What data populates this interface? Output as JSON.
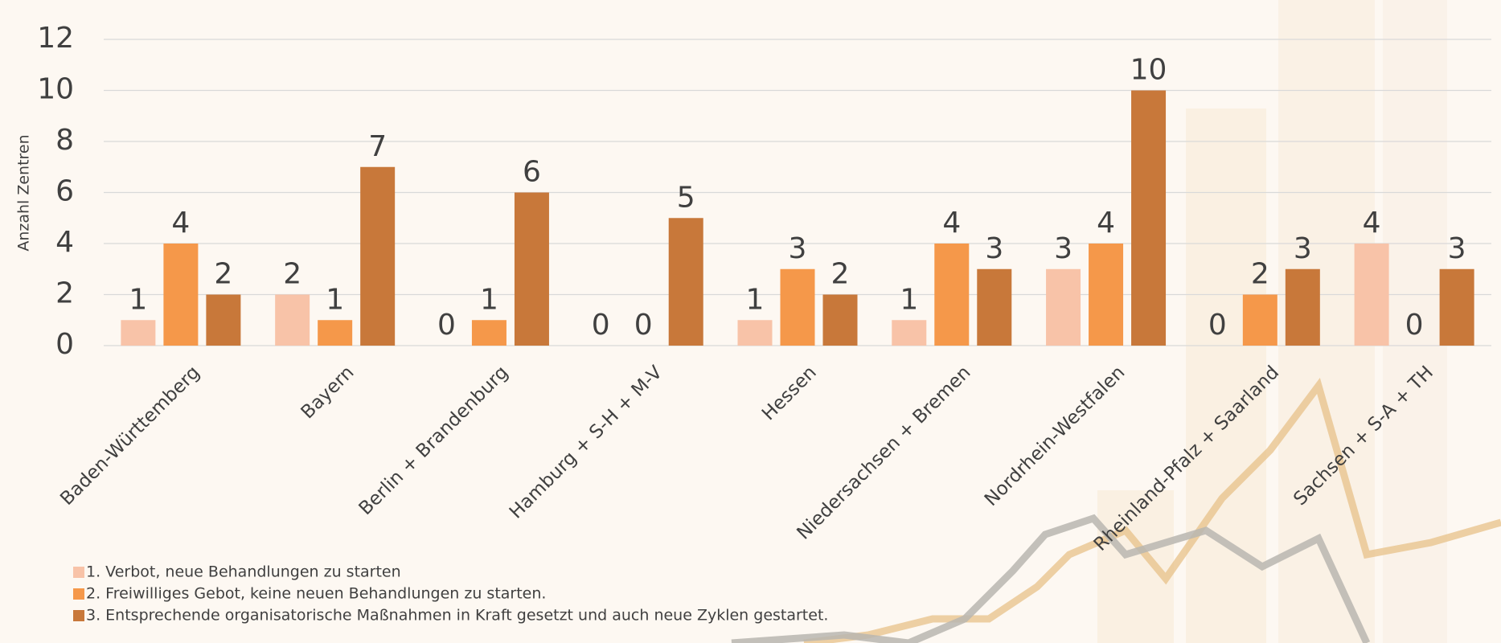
{
  "chart_data": {
    "type": "bar",
    "y_label": "Anzahl Zentren",
    "categories": [
      "Baden-Württemberg",
      "Bayern",
      "Berlin + Brandenburg",
      "Hamburg + S-H + M-V",
      "Hessen",
      "Niedersachsen + Bremen",
      "Nordrhein-Westfalen",
      "Rheinland-Pfalz + Saarland",
      "Sachsen + S-A + TH"
    ],
    "series": [
      {
        "name": "1. Verbot, neue Behandlungen zu starten",
        "color": "#f8c3a8",
        "values": [
          1,
          2,
          0,
          0,
          1,
          1,
          3,
          0,
          4
        ]
      },
      {
        "name": "2. Freiwilliges Gebot, keine neuen Behandlungen zu starten.",
        "color": "#f5984a",
        "values": [
          4,
          1,
          1,
          0,
          3,
          4,
          4,
          2,
          0
        ]
      },
      {
        "name": "3. Entsprechende organisatorische Maßnahmen in Kraft gesetzt und auch neue Zyklen gestartet.",
        "color": "#c8783a",
        "values": [
          2,
          7,
          6,
          5,
          2,
          3,
          10,
          3,
          3
        ]
      }
    ],
    "ylim": [
      0,
      12
    ],
    "yticks": [
      0,
      2,
      4,
      6,
      8,
      10,
      12
    ],
    "grid": true,
    "legend": "bottom-left"
  }
}
